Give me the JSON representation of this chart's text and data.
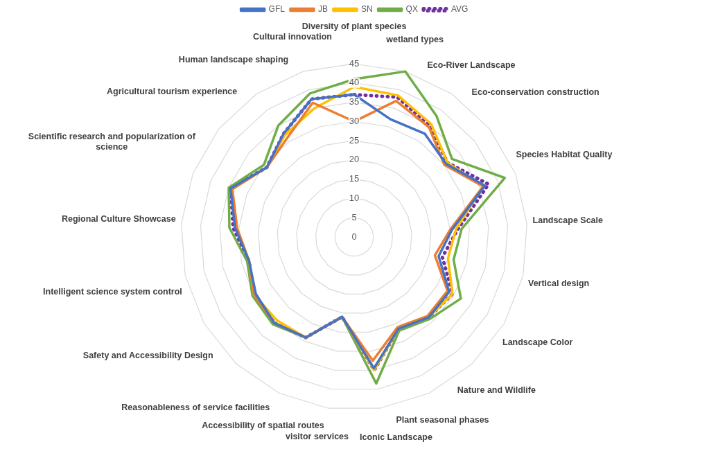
{
  "chart_data": {
    "type": "radar",
    "categories": [
      "Diversity of plant species",
      "wetland types",
      "Eco-River Landscape",
      "Eco-conservation construction",
      "Species Habitat Quality",
      "Landscape Scale",
      "Vertical design",
      "Landscape Color",
      "Nature and Wildlife",
      "Plant seasonal phases",
      "Iconic Landscape",
      "visitor services",
      "Accessibility of spatial routes",
      "Reasonableness of service facilities",
      "Safety and Accessibility Design",
      "Intelligent science system control",
      "Regional Culture Showcase",
      "Scientific research and popularization of science",
      "Agricultural tourism experience",
      "Human landscape shaping",
      "Cultural innovation"
    ],
    "series": [
      {
        "name": "GFL",
        "color": "#4472c4",
        "values": [
          37,
          32,
          32.5,
          30.5,
          36.5,
          25.5,
          22.5,
          28.5,
          28.5,
          26.5,
          34.5,
          21,
          29,
          30.5,
          29.5,
          28,
          31,
          34.5,
          29,
          32.5,
          37.5
        ]
      },
      {
        "name": "JB",
        "color": "#ed7d31",
        "values": [
          30,
          37,
          34.5,
          30,
          36,
          25,
          21.5,
          28,
          28,
          26,
          32.5,
          21,
          29,
          30.5,
          30,
          28,
          30.5,
          34,
          29,
          31,
          36.5
        ]
      },
      {
        "name": "SN",
        "color": "#ffc000",
        "values": [
          39,
          38.5,
          35.5,
          31,
          36,
          26.5,
          25,
          29.5,
          28.5,
          26.5,
          35,
          21,
          29,
          29.5,
          30,
          28,
          30.5,
          34,
          29,
          32,
          35
        ]
      },
      {
        "name": "QX",
        "color": "#70ad47",
        "values": [
          41,
          45,
          38,
          32.5,
          42,
          28,
          26.5,
          32,
          29,
          27,
          38.5,
          21,
          29,
          31,
          30.5,
          28.5,
          32.5,
          35,
          30,
          35,
          39
        ]
      },
      {
        "name": "AVG",
        "color": "#7030a0",
        "line_style": "dotted",
        "values": [
          37,
          38,
          35,
          31,
          37.5,
          27,
          23.5,
          29.5,
          28.5,
          26.5,
          35,
          21,
          29,
          30.5,
          30,
          28,
          31.5,
          34.5,
          29,
          32.5,
          37.5
        ]
      }
    ],
    "ylim": [
      0,
      45
    ],
    "yticks": [
      0,
      5,
      10,
      15,
      20,
      25,
      30,
      35,
      40,
      45
    ],
    "grid": true,
    "legend": "top",
    "marker": "none"
  }
}
